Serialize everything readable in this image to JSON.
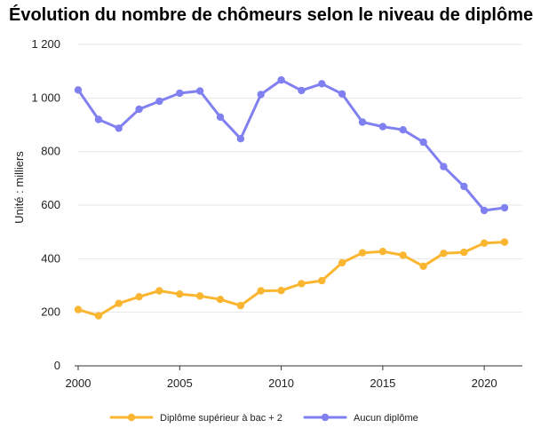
{
  "chart_data": {
    "type": "line",
    "title": "Évolution du nombre de chômeurs selon le niveau de diplôme",
    "xlabel": "",
    "ylabel": "Unité : milliers",
    "x": [
      2000,
      2001,
      2002,
      2003,
      2004,
      2005,
      2006,
      2007,
      2008,
      2009,
      2010,
      2011,
      2012,
      2013,
      2014,
      2015,
      2016,
      2017,
      2018,
      2019,
      2020,
      2021
    ],
    "xlim": [
      2000,
      2021
    ],
    "xticks": [
      2000,
      2005,
      2010,
      2015,
      2020
    ],
    "xtick_labels": [
      "2000",
      "2005",
      "2010",
      "2015",
      "2020"
    ],
    "ylim": [
      0,
      1200
    ],
    "yticks": [
      0,
      200,
      400,
      600,
      800,
      1000,
      1200
    ],
    "ytick_labels": [
      "0",
      "200",
      "400",
      "600",
      "800",
      "1 000",
      "1 200"
    ],
    "grid": "horizontal",
    "legend_position": "bottom",
    "series": [
      {
        "name": "Diplôme supérieur à bac + 2",
        "color": "#fbb631",
        "values": [
          210,
          187,
          233,
          258,
          280,
          268,
          261,
          248,
          225,
          280,
          281,
          307,
          318,
          385,
          422,
          427,
          413,
          372,
          420,
          424,
          458,
          462
        ]
      },
      {
        "name": "Aucun diplôme",
        "color": "#8080f0",
        "values": [
          1030,
          920,
          887,
          958,
          988,
          1018,
          1026,
          929,
          848,
          1013,
          1067,
          1028,
          1053,
          1015,
          910,
          893,
          881,
          835,
          744,
          670,
          580,
          590
        ]
      }
    ]
  }
}
